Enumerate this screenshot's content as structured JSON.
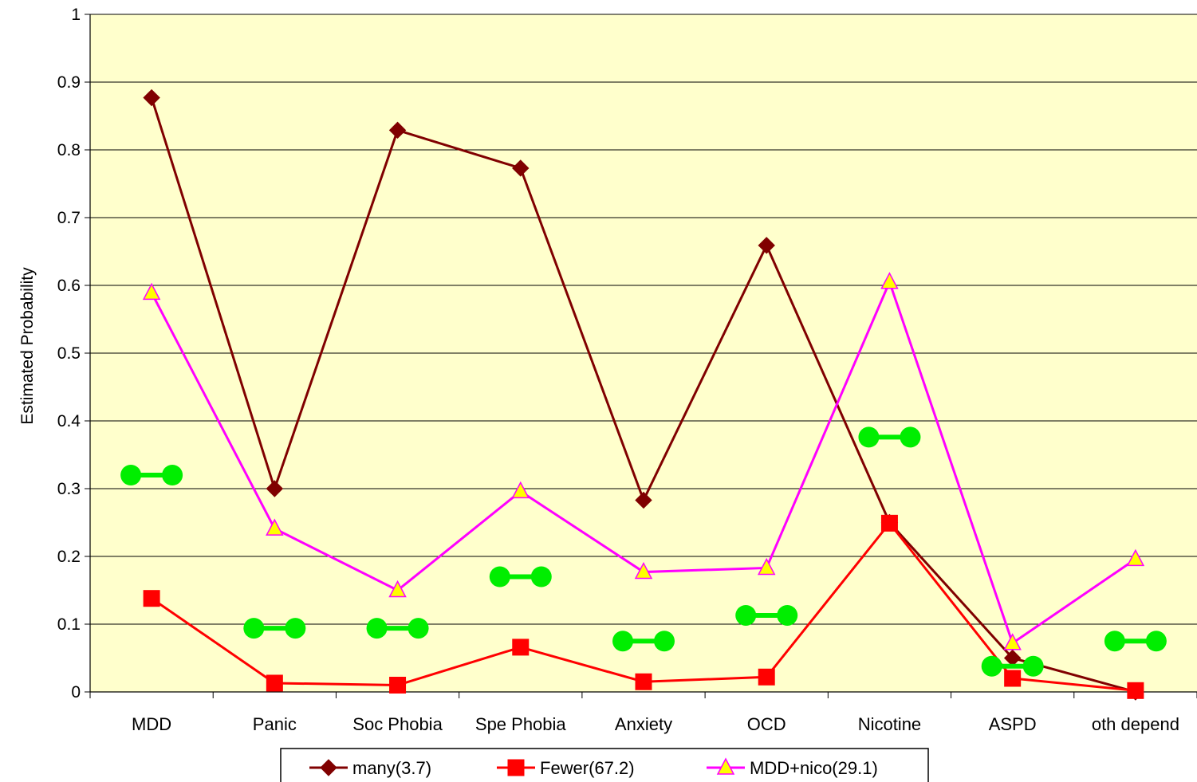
{
  "chart_data": {
    "type": "line",
    "title": "",
    "xlabel": "",
    "ylabel": "Estimated Probability",
    "ylim": [
      0,
      1
    ],
    "yticks": [
      "0",
      "0.1",
      "0.2",
      "0.3",
      "0.4",
      "0.5",
      "0.6",
      "0.7",
      "0.8",
      "0.9",
      "1"
    ],
    "categories": [
      "MDD",
      "Panic",
      "Soc Phobia",
      "Spe Phobia",
      "Anxiety",
      "OCD",
      "Nicotine",
      "ASPD",
      "oth depend"
    ],
    "series": [
      {
        "name": "many(3.7)",
        "marker": "diamond",
        "color": "#800000",
        "values": [
          0.877,
          0.3,
          0.829,
          0.773,
          0.283,
          0.659,
          0.25,
          0.05,
          0.0
        ]
      },
      {
        "name": "Fewer(67.2)",
        "marker": "square",
        "color": "#ff0000",
        "values": [
          0.138,
          0.013,
          0.01,
          0.066,
          0.015,
          0.022,
          0.249,
          0.02,
          0.002
        ]
      },
      {
        "name": "MDD+nico(29.1)",
        "marker": "triangle",
        "color": "#ff00ff",
        "marker_fill": "#ffff00",
        "values": [
          0.589,
          0.241,
          0.15,
          0.296,
          0.177,
          0.183,
          0.605,
          0.072,
          0.196
        ]
      }
    ],
    "annotation_markers": {
      "description": "green dumbbell marks",
      "color": "#00ee00",
      "values": [
        0.32,
        0.094,
        0.094,
        0.17,
        0.075,
        0.113,
        0.376,
        0.038,
        0.075
      ]
    },
    "grid": true,
    "legend_position": "bottom",
    "plot_background": "#ffffcc"
  }
}
